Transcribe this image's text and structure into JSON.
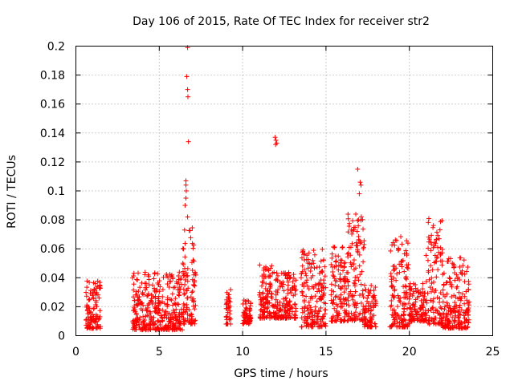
{
  "chart_data": {
    "type": "scatter",
    "title": "Day 106 of 2015, Rate Of TEC Index for receiver str2",
    "xlabel": "GPS time / hours",
    "ylabel": "ROTI / TECUs",
    "xlim": [
      0,
      25
    ],
    "ylim": [
      0,
      0.2
    ],
    "xticks": [
      0,
      5,
      10,
      15,
      20,
      25
    ],
    "yticks": [
      0,
      0.02,
      0.04,
      0.06,
      0.08,
      0.1,
      0.12,
      0.14,
      0.16,
      0.18,
      0.2
    ],
    "xtick_labels": [
      "0",
      "5",
      "10",
      "15",
      "20",
      "25"
    ],
    "ytick_labels": [
      "0",
      "0.02",
      "0.04",
      "0.06",
      "0.08",
      "0.1",
      "0.12",
      "0.14",
      "0.16",
      "0.18",
      "0.2"
    ],
    "grid": true,
    "marker": "+",
    "color": "#ff0000",
    "clusters": [
      {
        "x": [
          0.6,
          1.5
        ],
        "y": [
          0.005,
          0.038
        ]
      },
      {
        "x": [
          3.4,
          6.4
        ],
        "y": [
          0.004,
          0.044
        ]
      },
      {
        "x": [
          6.4,
          7.2
        ],
        "y": [
          0.008,
          0.075
        ]
      },
      {
        "x": [
          9.0,
          9.3
        ],
        "y": [
          0.008,
          0.036
        ]
      },
      {
        "x": [
          10.0,
          10.5
        ],
        "y": [
          0.008,
          0.025
        ]
      },
      {
        "x": [
          11.0,
          12.0
        ],
        "y": [
          0.012,
          0.049
        ]
      },
      {
        "x": [
          12.0,
          13.2
        ],
        "y": [
          0.012,
          0.044
        ]
      },
      {
        "x": [
          13.5,
          15.0
        ],
        "y": [
          0.006,
          0.06
        ]
      },
      {
        "x": [
          15.3,
          16.3
        ],
        "y": [
          0.01,
          0.062
        ]
      },
      {
        "x": [
          16.3,
          17.3
        ],
        "y": [
          0.01,
          0.085
        ]
      },
      {
        "x": [
          17.3,
          18.0
        ],
        "y": [
          0.006,
          0.035
        ]
      },
      {
        "x": [
          18.8,
          20.0
        ],
        "y": [
          0.006,
          0.069
        ]
      },
      {
        "x": [
          20.0,
          21.0
        ],
        "y": [
          0.01,
          0.036
        ]
      },
      {
        "x": [
          21.0,
          22.0
        ],
        "y": [
          0.008,
          0.081
        ]
      },
      {
        "x": [
          22.0,
          23.6
        ],
        "y": [
          0.005,
          0.055
        ]
      }
    ],
    "highlight_points": [
      {
        "x": 6.7,
        "y": 0.199
      },
      {
        "x": 6.65,
        "y": 0.179
      },
      {
        "x": 6.7,
        "y": 0.17
      },
      {
        "x": 6.72,
        "y": 0.165
      },
      {
        "x": 6.75,
        "y": 0.134
      },
      {
        "x": 6.6,
        "y": 0.107
      },
      {
        "x": 6.6,
        "y": 0.104
      },
      {
        "x": 6.62,
        "y": 0.1
      },
      {
        "x": 6.6,
        "y": 0.095
      },
      {
        "x": 6.55,
        "y": 0.09
      },
      {
        "x": 6.7,
        "y": 0.082
      },
      {
        "x": 11.95,
        "y": 0.137
      },
      {
        "x": 12.0,
        "y": 0.135
      },
      {
        "x": 12.05,
        "y": 0.133
      },
      {
        "x": 11.98,
        "y": 0.132
      },
      {
        "x": 16.9,
        "y": 0.115
      },
      {
        "x": 17.05,
        "y": 0.106
      },
      {
        "x": 17.1,
        "y": 0.104
      },
      {
        "x": 17.0,
        "y": 0.098
      },
      {
        "x": 16.95,
        "y": 0.08
      }
    ]
  }
}
